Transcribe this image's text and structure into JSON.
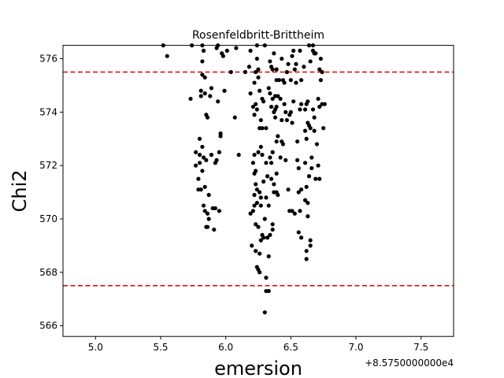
{
  "chart_data": {
    "type": "scatter",
    "title": "Rosenfeldbritt-Brittheim",
    "xlabel": "emersion",
    "ylabel": "Chi2",
    "x_offset_label": "+8.5750000000e4",
    "xlim": [
      4.75,
      7.75
    ],
    "ylim": [
      565.6,
      576.5
    ],
    "xticks": [
      5.0,
      5.5,
      6.0,
      6.5,
      7.0,
      7.5
    ],
    "xtick_labels": [
      "5.0",
      "5.5",
      "6.0",
      "6.5",
      "7.0",
      "7.5"
    ],
    "yticks": [
      566,
      568,
      570,
      572,
      574,
      576
    ],
    "ytick_labels": [
      "566",
      "568",
      "570",
      "572",
      "574",
      "576"
    ],
    "grid": false,
    "hlines": [
      {
        "y": 575.5,
        "color": "#e00000",
        "style": "dashed"
      },
      {
        "y": 567.5,
        "color": "#e00000",
        "style": "dashed"
      }
    ],
    "marker_color": "#000000",
    "points": [
      [
        5.52,
        576.5
      ],
      [
        5.55,
        576.1
      ],
      [
        5.73,
        574.5
      ],
      [
        5.74,
        576.5
      ],
      [
        5.77,
        572.5
      ],
      [
        5.77,
        572.0
      ],
      [
        5.79,
        571.5
      ],
      [
        5.79,
        571.1
      ],
      [
        5.8,
        573.0
      ],
      [
        5.8,
        572.4
      ],
      [
        5.8,
        572.1
      ],
      [
        5.81,
        574.8
      ],
      [
        5.81,
        574.6
      ],
      [
        5.81,
        571.1
      ],
      [
        5.82,
        576.5
      ],
      [
        5.82,
        575.9
      ],
      [
        5.82,
        575.4
      ],
      [
        5.82,
        572.7
      ],
      [
        5.82,
        571.8
      ],
      [
        5.83,
        576.3
      ],
      [
        5.83,
        572.3
      ],
      [
        5.83,
        570.5
      ],
      [
        5.84,
        575.3
      ],
      [
        5.84,
        574.7
      ],
      [
        5.84,
        571.2
      ],
      [
        5.84,
        570.3
      ],
      [
        5.85,
        573.9
      ],
      [
        5.85,
        572.2
      ],
      [
        5.85,
        569.7
      ],
      [
        5.86,
        573.8
      ],
      [
        5.86,
        570.2
      ],
      [
        5.86,
        569.7
      ],
      [
        5.87,
        570.9
      ],
      [
        5.87,
        570.0
      ],
      [
        5.88,
        574.6
      ],
      [
        5.89,
        574.9
      ],
      [
        5.89,
        572.4
      ],
      [
        5.9,
        570.4
      ],
      [
        5.91,
        569.6
      ],
      [
        5.92,
        572.1
      ],
      [
        5.92,
        570.4
      ],
      [
        5.93,
        576.4
      ],
      [
        5.93,
        572.2
      ],
      [
        5.94,
        576.5
      ],
      [
        5.94,
        574.4
      ],
      [
        5.95,
        572.5
      ],
      [
        5.95,
        570.3
      ],
      [
        5.96,
        573.2
      ],
      [
        5.96,
        573.1
      ],
      [
        5.97,
        576.2
      ],
      [
        5.98,
        576.1
      ],
      [
        5.99,
        574.8
      ],
      [
        6.01,
        576.3
      ],
      [
        6.04,
        575.5
      ],
      [
        6.07,
        573.8
      ],
      [
        6.08,
        576.4
      ],
      [
        6.1,
        572.4
      ],
      [
        6.15,
        575.5
      ],
      [
        6.18,
        575.7
      ],
      [
        6.19,
        576.3
      ],
      [
        6.19,
        574.7
      ],
      [
        6.19,
        570.2
      ],
      [
        6.2,
        569.0
      ],
      [
        6.21,
        574.2
      ],
      [
        6.21,
        572.1
      ],
      [
        6.21,
        570.3
      ],
      [
        6.22,
        575.1
      ],
      [
        6.22,
        573.9
      ],
      [
        6.22,
        572.4
      ],
      [
        6.22,
        571.7
      ],
      [
        6.22,
        570.9
      ],
      [
        6.22,
        570.5
      ],
      [
        6.23,
        575.5
      ],
      [
        6.23,
        574.3
      ],
      [
        6.23,
        571.8
      ],
      [
        6.23,
        571.3
      ],
      [
        6.23,
        569.8
      ],
      [
        6.23,
        568.8
      ],
      [
        6.24,
        576.5
      ],
      [
        6.24,
        576.0
      ],
      [
        6.24,
        574.1
      ],
      [
        6.24,
        571.1
      ],
      [
        6.24,
        570.6
      ],
      [
        6.24,
        568.2
      ],
      [
        6.25,
        575.6
      ],
      [
        6.25,
        575.3
      ],
      [
        6.25,
        572.5
      ],
      [
        6.25,
        569.7
      ],
      [
        6.25,
        568.1
      ],
      [
        6.26,
        574.8
      ],
      [
        6.26,
        573.4
      ],
      [
        6.26,
        571.0
      ],
      [
        6.26,
        568.7
      ],
      [
        6.26,
        568.0
      ],
      [
        6.27,
        573.7
      ],
      [
        6.27,
        572.7
      ],
      [
        6.27,
        570.8
      ],
      [
        6.27,
        570.5
      ],
      [
        6.27,
        569.2
      ],
      [
        6.28,
        574.5
      ],
      [
        6.28,
        573.4
      ],
      [
        6.28,
        572.4
      ],
      [
        6.28,
        569.4
      ],
      [
        6.29,
        574.4
      ],
      [
        6.29,
        571.4
      ],
      [
        6.29,
        569.3
      ],
      [
        6.3,
        576.5
      ],
      [
        6.3,
        570.0
      ],
      [
        6.3,
        566.5
      ],
      [
        6.31,
        573.4
      ],
      [
        6.31,
        572.1
      ],
      [
        6.31,
        570.8
      ],
      [
        6.31,
        567.8
      ],
      [
        6.31,
        567.3
      ],
      [
        6.32,
        571.6
      ],
      [
        6.32,
        569.3
      ],
      [
        6.33,
        574.9
      ],
      [
        6.33,
        570.5
      ],
      [
        6.33,
        568.6
      ],
      [
        6.33,
        567.3
      ],
      [
        6.34,
        575.9
      ],
      [
        6.34,
        574.7
      ],
      [
        6.34,
        572.3
      ],
      [
        6.34,
        569.4
      ],
      [
        6.35,
        575.7
      ],
      [
        6.35,
        574.2
      ],
      [
        6.35,
        572.1
      ],
      [
        6.35,
        571.5
      ],
      [
        6.36,
        575.6
      ],
      [
        6.36,
        574.5
      ],
      [
        6.36,
        572.5
      ],
      [
        6.36,
        569.8
      ],
      [
        6.36,
        569.6
      ],
      [
        6.37,
        576.2
      ],
      [
        6.37,
        574.0
      ],
      [
        6.37,
        571.3
      ],
      [
        6.37,
        571.0
      ],
      [
        6.38,
        574.6
      ],
      [
        6.38,
        574.1
      ],
      [
        6.38,
        573.8
      ],
      [
        6.39,
        575.6
      ],
      [
        6.39,
        575.2
      ],
      [
        6.39,
        574.2
      ],
      [
        6.39,
        572.9
      ],
      [
        6.39,
        571.7
      ],
      [
        6.39,
        571.0
      ],
      [
        6.4,
        574.6
      ],
      [
        6.4,
        573.1
      ],
      [
        6.4,
        570.9
      ],
      [
        6.41,
        575.2
      ],
      [
        6.42,
        574.5
      ],
      [
        6.42,
        572.3
      ],
      [
        6.43,
        576.0
      ],
      [
        6.43,
        573.7
      ],
      [
        6.43,
        572.9
      ],
      [
        6.44,
        575.2
      ],
      [
        6.44,
        572.8
      ],
      [
        6.45,
        575.1
      ],
      [
        6.45,
        574.3
      ],
      [
        6.46,
        574.0
      ],
      [
        6.46,
        572.2
      ],
      [
        6.47,
        575.5
      ],
      [
        6.47,
        573.7
      ],
      [
        6.48,
        575.8
      ],
      [
        6.48,
        571.1
      ],
      [
        6.49,
        573.9
      ],
      [
        6.49,
        570.3
      ],
      [
        6.5,
        575.2
      ],
      [
        6.5,
        574.0
      ],
      [
        6.51,
        576.1
      ],
      [
        6.51,
        573.6
      ],
      [
        6.51,
        570.3
      ],
      [
        6.52,
        576.3
      ],
      [
        6.52,
        574.4
      ],
      [
        6.53,
        575.6
      ],
      [
        6.53,
        570.2
      ],
      [
        6.54,
        575.8
      ],
      [
        6.54,
        575.1
      ],
      [
        6.55,
        572.9
      ],
      [
        6.55,
        572.2
      ],
      [
        6.56,
        571.9
      ],
      [
        6.56,
        571.0
      ],
      [
        6.56,
        569.5
      ],
      [
        6.57,
        576.3
      ],
      [
        6.57,
        574.1
      ],
      [
        6.57,
        570.3
      ],
      [
        6.58,
        575.2
      ],
      [
        6.58,
        574.3
      ],
      [
        6.58,
        571.1
      ],
      [
        6.58,
        569.3
      ],
      [
        6.6,
        575.7
      ],
      [
        6.61,
        574.1
      ],
      [
        6.61,
        573.3
      ],
      [
        6.61,
        572.1
      ],
      [
        6.61,
        570.7
      ],
      [
        6.62,
        574.3
      ],
      [
        6.62,
        573.0
      ],
      [
        6.62,
        571.2
      ],
      [
        6.62,
        568.8
      ],
      [
        6.62,
        568.5
      ],
      [
        6.63,
        574.4
      ],
      [
        6.63,
        573.6
      ],
      [
        6.63,
        570.6
      ],
      [
        6.63,
        570.1
      ],
      [
        6.64,
        576.5
      ],
      [
        6.64,
        573.5
      ],
      [
        6.64,
        571.6
      ],
      [
        6.65,
        575.9
      ],
      [
        6.65,
        573.4
      ],
      [
        6.65,
        569.2
      ],
      [
        6.65,
        569.0
      ],
      [
        6.66,
        572.3
      ],
      [
        6.66,
        571.9
      ],
      [
        6.67,
        576.5
      ],
      [
        6.67,
        576.3
      ],
      [
        6.67,
        574.1
      ],
      [
        6.68,
        576.2
      ],
      [
        6.68,
        573.8
      ],
      [
        6.68,
        573.3
      ],
      [
        6.69,
        576.2
      ],
      [
        6.69,
        571.5
      ],
      [
        6.7,
        572.8
      ],
      [
        6.71,
        574.5
      ],
      [
        6.71,
        572.0
      ],
      [
        6.72,
        575.6
      ],
      [
        6.72,
        574.2
      ],
      [
        6.72,
        571.5
      ],
      [
        6.73,
        576.0
      ],
      [
        6.73,
        575.2
      ],
      [
        6.74,
        575.5
      ],
      [
        6.74,
        574.3
      ],
      [
        6.75,
        573.4
      ],
      [
        6.76,
        574.3
      ]
    ]
  }
}
